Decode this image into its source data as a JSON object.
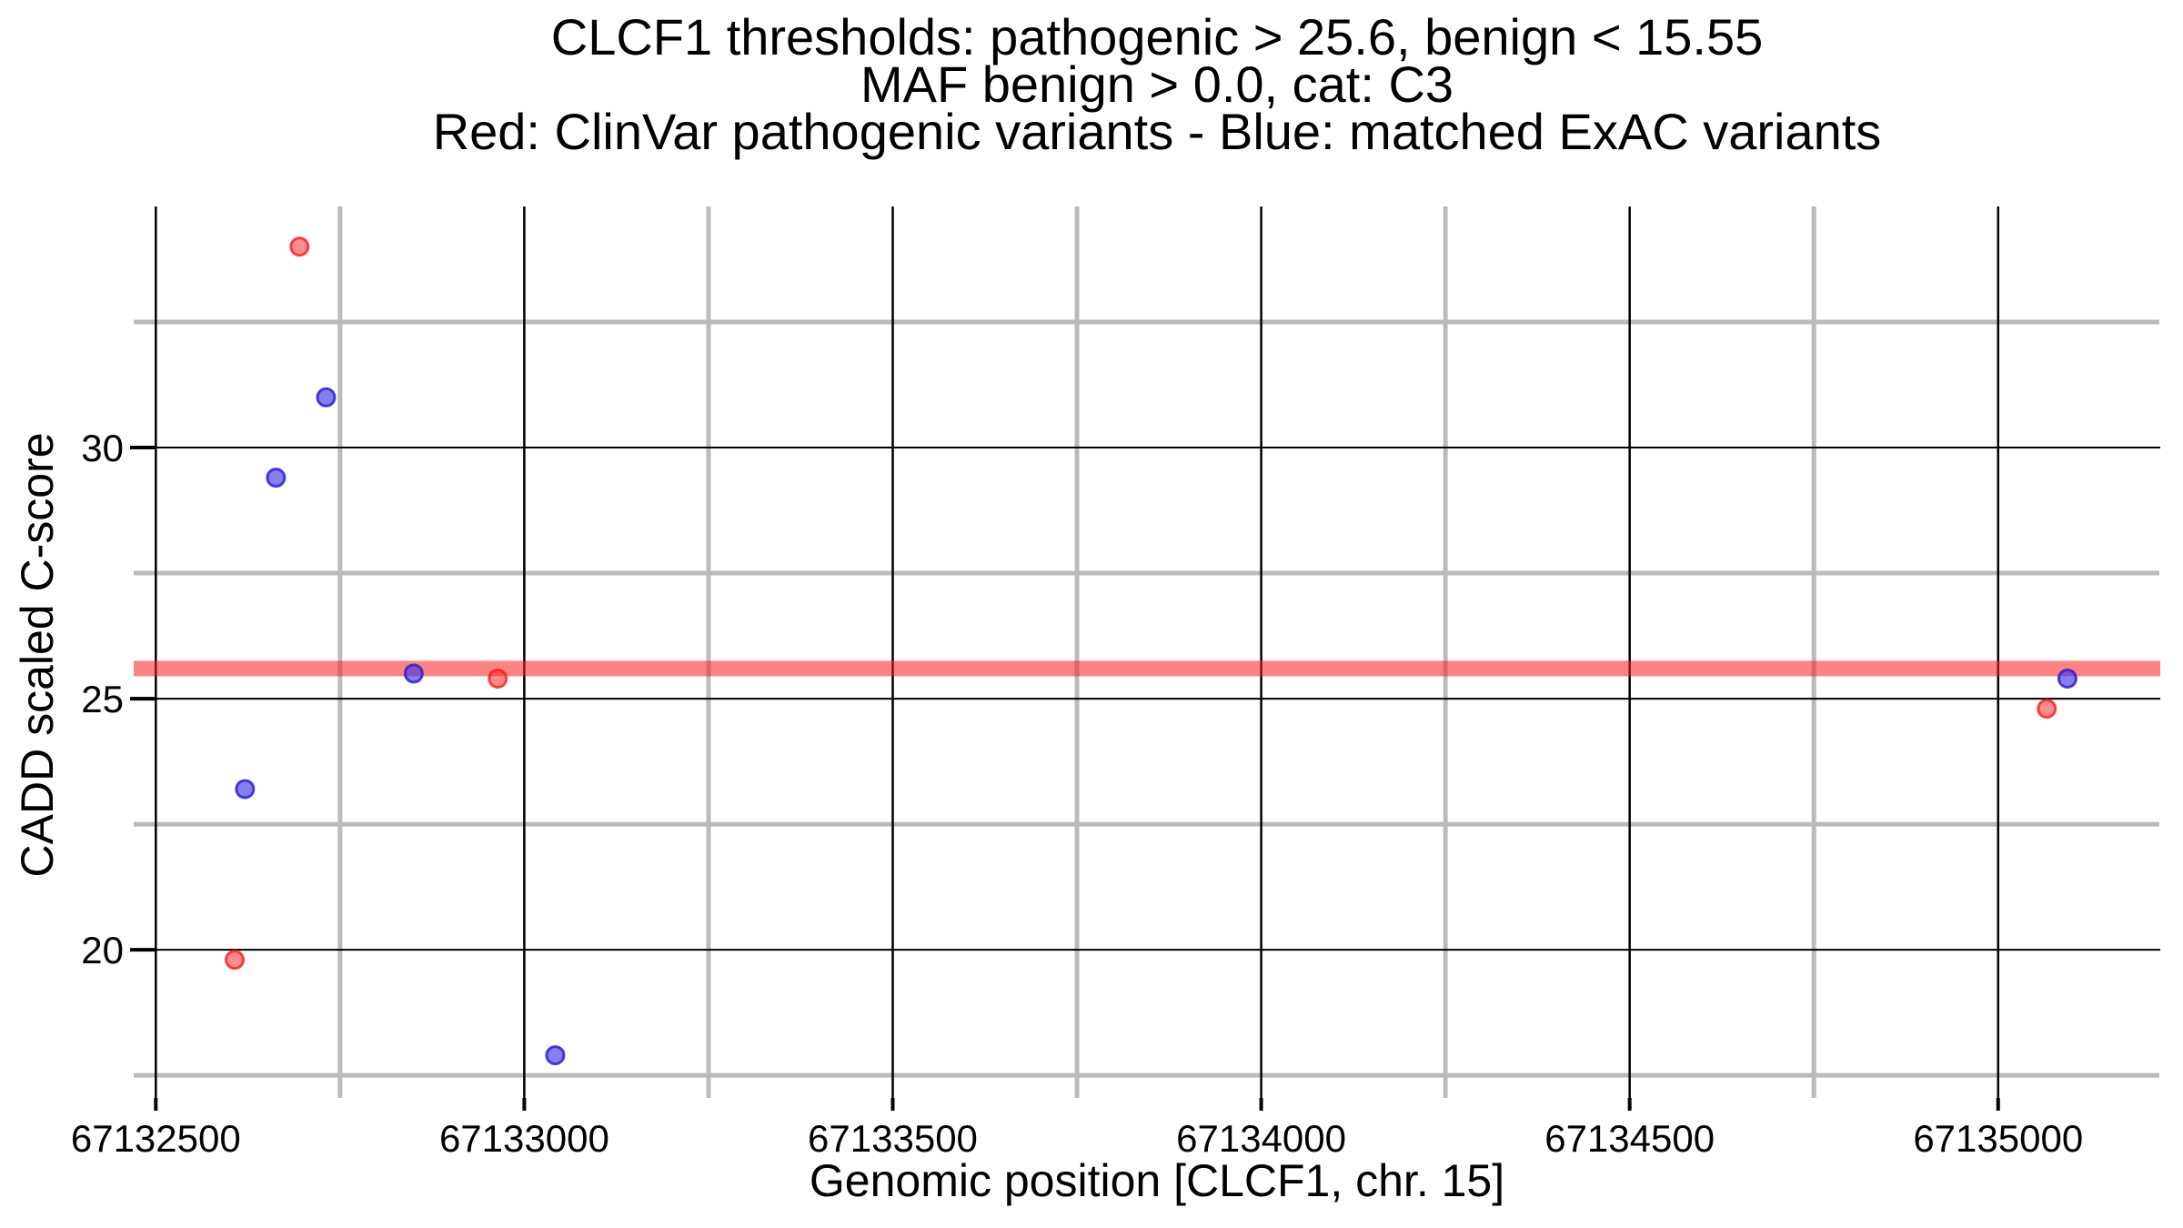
{
  "chart_data": {
    "type": "scatter",
    "title_lines": [
      "CLCF1 thresholds: pathogenic > 25.6, benign < 15.55",
      "MAF benign > 0.0, cat: C3",
      "Red: ClinVar pathogenic variants - Blue: matched ExAC variants"
    ],
    "xlabel": "Genomic position [CLCF1, chr. 15]",
    "ylabel": "CADD scaled C-score",
    "x_tick_positions": [
      67132500,
      67133000,
      67133500,
      67134000,
      67134500,
      67135000
    ],
    "x_tick_labels": [
      "67132500",
      "67133000",
      "67133500",
      "67134000",
      "67134500",
      "67135000"
    ],
    "x_minor_gridlines": [
      67132750,
      67133250,
      67133750,
      67134250,
      67134750
    ],
    "y_tick_positions": [
      30,
      25,
      20
    ],
    "y_tick_labels": [
      "30",
      "25",
      "20"
    ],
    "y_minor_gridlines": [
      32.5,
      27.5,
      22.5,
      17.5
    ],
    "xlim": [
      67132470,
      67135220
    ],
    "ylim": [
      17.05,
      34.8
    ],
    "grid": "on",
    "legend_position": "none",
    "threshold_line": {
      "value": 25.6,
      "label": "pathogenic threshold"
    },
    "series": [
      {
        "name": "ClinVar pathogenic variants",
        "color_role": "red",
        "points": [
          {
            "pos": 67132695,
            "cadd": 34.0
          },
          {
            "pos": 67132964,
            "cadd": 25.4
          },
          {
            "pos": 67135066,
            "cadd": 24.8
          },
          {
            "pos": 67132607,
            "cadd": 19.8
          }
        ]
      },
      {
        "name": "matched ExAC variants",
        "color_role": "blue",
        "points": [
          {
            "pos": 67132731,
            "cadd": 31.0
          },
          {
            "pos": 67132663,
            "cadd": 29.4
          },
          {
            "pos": 67132850,
            "cadd": 25.5
          },
          {
            "pos": 67135094,
            "cadd": 25.4
          },
          {
            "pos": 67132621,
            "cadd": 23.2
          },
          {
            "pos": 67133042,
            "cadd": 17.9
          }
        ]
      }
    ],
    "colors": {
      "red_fill": "rgba(255,25,25,0.50)",
      "red_stroke": "rgba(242,25,25,0.78)",
      "blue_fill": "rgba(62,48,230,0.62)",
      "blue_stroke": "rgba(48,32,205,0.85)",
      "threshold_band": "rgba(247,30,30,0.55)",
      "grid_major": "#000000",
      "grid_minor": "#bbbbbb",
      "background": "#ffffff"
    }
  }
}
